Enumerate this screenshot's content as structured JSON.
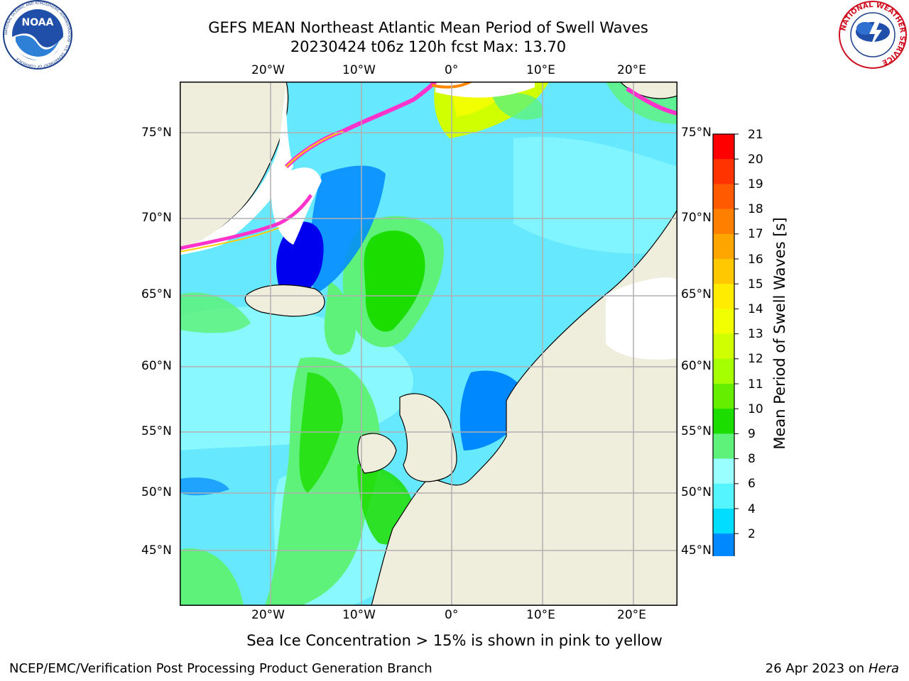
{
  "header": {
    "title_line1": "GEFS MEAN Northeast Atlantic Mean Period of Swell Waves",
    "title_line2": "20230424 t06z 120h fcst   Max: 13.70"
  },
  "logos": {
    "noaa": {
      "text": "NOAA",
      "ring_text": "NATIONAL OCEANIC AND ATMOSPHERIC ADMINISTRATION · U.S. DEPARTMENT OF COMMERCE"
    },
    "nws": {
      "ring_text": "NATIONAL WEATHER SERVICE"
    }
  },
  "map": {
    "lon_ticks_top": [
      "20°W",
      "10°W",
      "0°",
      "10°E",
      "20°E"
    ],
    "lon_ticks_bottom": [
      "20°W",
      "10°W",
      "0°",
      "10°E",
      "20°E"
    ],
    "lat_ticks_left": [
      "75°N",
      "70°N",
      "65°N",
      "60°N",
      "55°N",
      "50°N",
      "45°N"
    ],
    "lat_ticks_right": [
      "75°N",
      "70°N",
      "65°N",
      "60°N",
      "55°N",
      "50°N",
      "45°N"
    ],
    "colors": {
      "land": "#efeddc",
      "ocean_base": "#66e8ff",
      "grid": "#b0b0b0"
    }
  },
  "colorbar": {
    "label": "Mean Period of Swell Waves [s]",
    "ticks": [
      "21",
      "20",
      "19",
      "18",
      "17",
      "16",
      "15",
      "14",
      "13",
      "12",
      "11",
      "10",
      "9",
      "8",
      "6",
      "4",
      "2"
    ],
    "colors": [
      "#ff0000",
      "#ff3300",
      "#ff5a00",
      "#ff8000",
      "#ffa500",
      "#ffc800",
      "#ffec00",
      "#f2ff00",
      "#cfff00",
      "#a6ff00",
      "#66ee00",
      "#1cdd00",
      "#5ff27b",
      "#99ffff",
      "#55f5ff",
      "#00ddff",
      "#0088ff"
    ],
    "extend_color": "#0000ee"
  },
  "footer": {
    "caption": "Sea Ice Concentration > 15% is shown in pink to yellow",
    "left": "NCEP/EMC/Verification Post Processing Product Generation Branch",
    "right_date": "26 Apr 2023 on ",
    "right_host": "Hera"
  }
}
